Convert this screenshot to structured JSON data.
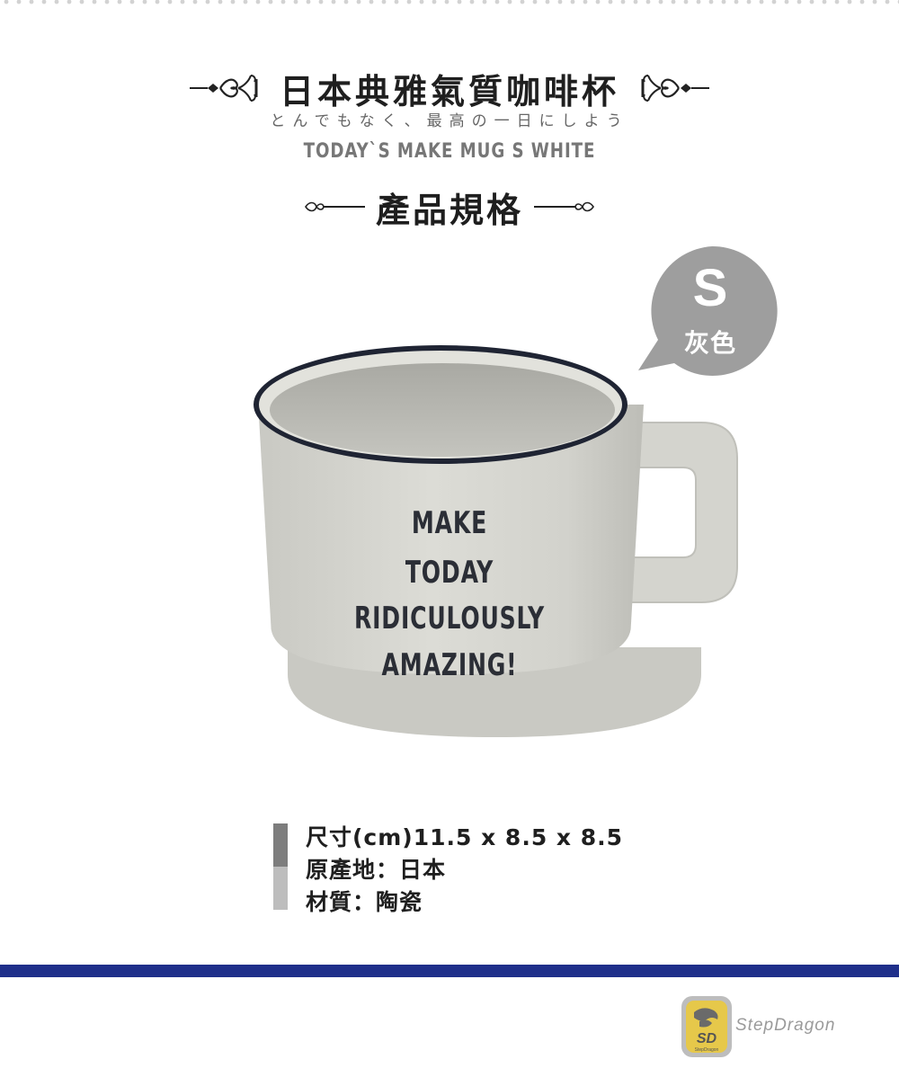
{
  "header": {
    "title": "日本典雅氣質咖啡杯",
    "subtitle_jp": "とんでもなく、最高の一日にしよう",
    "subtitle_en": "TODAY`S MAKE MUG S WHITE"
  },
  "section": {
    "title": "產品規格"
  },
  "size_badge": {
    "size": "S",
    "color_name": "灰色",
    "color": "#9e9e9e"
  },
  "mug": {
    "print_lines": [
      "MAKE",
      "TODAY",
      "RIDICULOUSLY",
      "AMAZING!"
    ],
    "body_color": "#d6d6d0",
    "rim_color": "#1f2433"
  },
  "specs": [
    "尺寸(cm)11.5 x 8.5 x 8.5",
    "原產地：日本",
    "材質：陶瓷"
  ],
  "footer": {
    "band_color": "#1f2f8a",
    "logo_letters": "SD",
    "logo_small_text": "StepDragon",
    "brand": "StepDragon"
  }
}
